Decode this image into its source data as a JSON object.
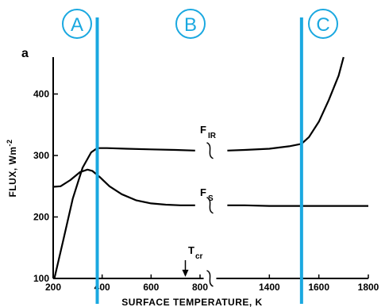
{
  "chart_data": {
    "type": "line",
    "panel_label": "a",
    "xlabel": "SURFACE TEMPERATURE, K",
    "ylabel": "FLUX, Wm",
    "ylabel_exponent": "-2",
    "x_ticks": [
      "200",
      "400",
      "600",
      "800",
      "1400",
      "1600",
      "1800"
    ],
    "x_segments": [
      {
        "label": "left",
        "range": [
          200,
          800
        ]
      },
      {
        "label": "right",
        "range": [
          1200,
          1800
        ]
      }
    ],
    "ylim": [
      100,
      460
    ],
    "y_ticks": [
      "100",
      "200",
      "300",
      "400"
    ],
    "regions": [
      {
        "letter": "A",
        "boundary_x": 380
      },
      {
        "letter": "B"
      },
      {
        "letter": "C",
        "boundary_x": 1530
      }
    ],
    "region_color": "#1aa8e0",
    "series": [
      {
        "name": "F",
        "subscript": "IR",
        "x": [
          205,
          240,
          280,
          320,
          355,
          380,
          420,
          500,
          600,
          700,
          780,
          1230,
          1300,
          1400,
          1480,
          1530,
          1560,
          1600,
          1640,
          1680,
          1700
        ],
        "y": [
          100,
          160,
          230,
          280,
          305,
          312,
          312,
          311,
          310,
          309,
          308,
          308,
          309,
          311,
          315,
          319,
          330,
          355,
          390,
          430,
          460
        ]
      },
      {
        "name": "F",
        "subscript": "S",
        "x": [
          200,
          230,
          270,
          310,
          340,
          360,
          390,
          430,
          480,
          540,
          600,
          660,
          720,
          780,
          1230,
          1300,
          1400,
          1500,
          1600,
          1700,
          1800
        ],
        "y": [
          249,
          250,
          260,
          273,
          277,
          275,
          265,
          250,
          237,
          227,
          222,
          220,
          219,
          219,
          219,
          219,
          218,
          218,
          218,
          218,
          218
        ]
      }
    ],
    "annotation": {
      "name": "T",
      "subscript": "cr",
      "x": 740
    }
  }
}
